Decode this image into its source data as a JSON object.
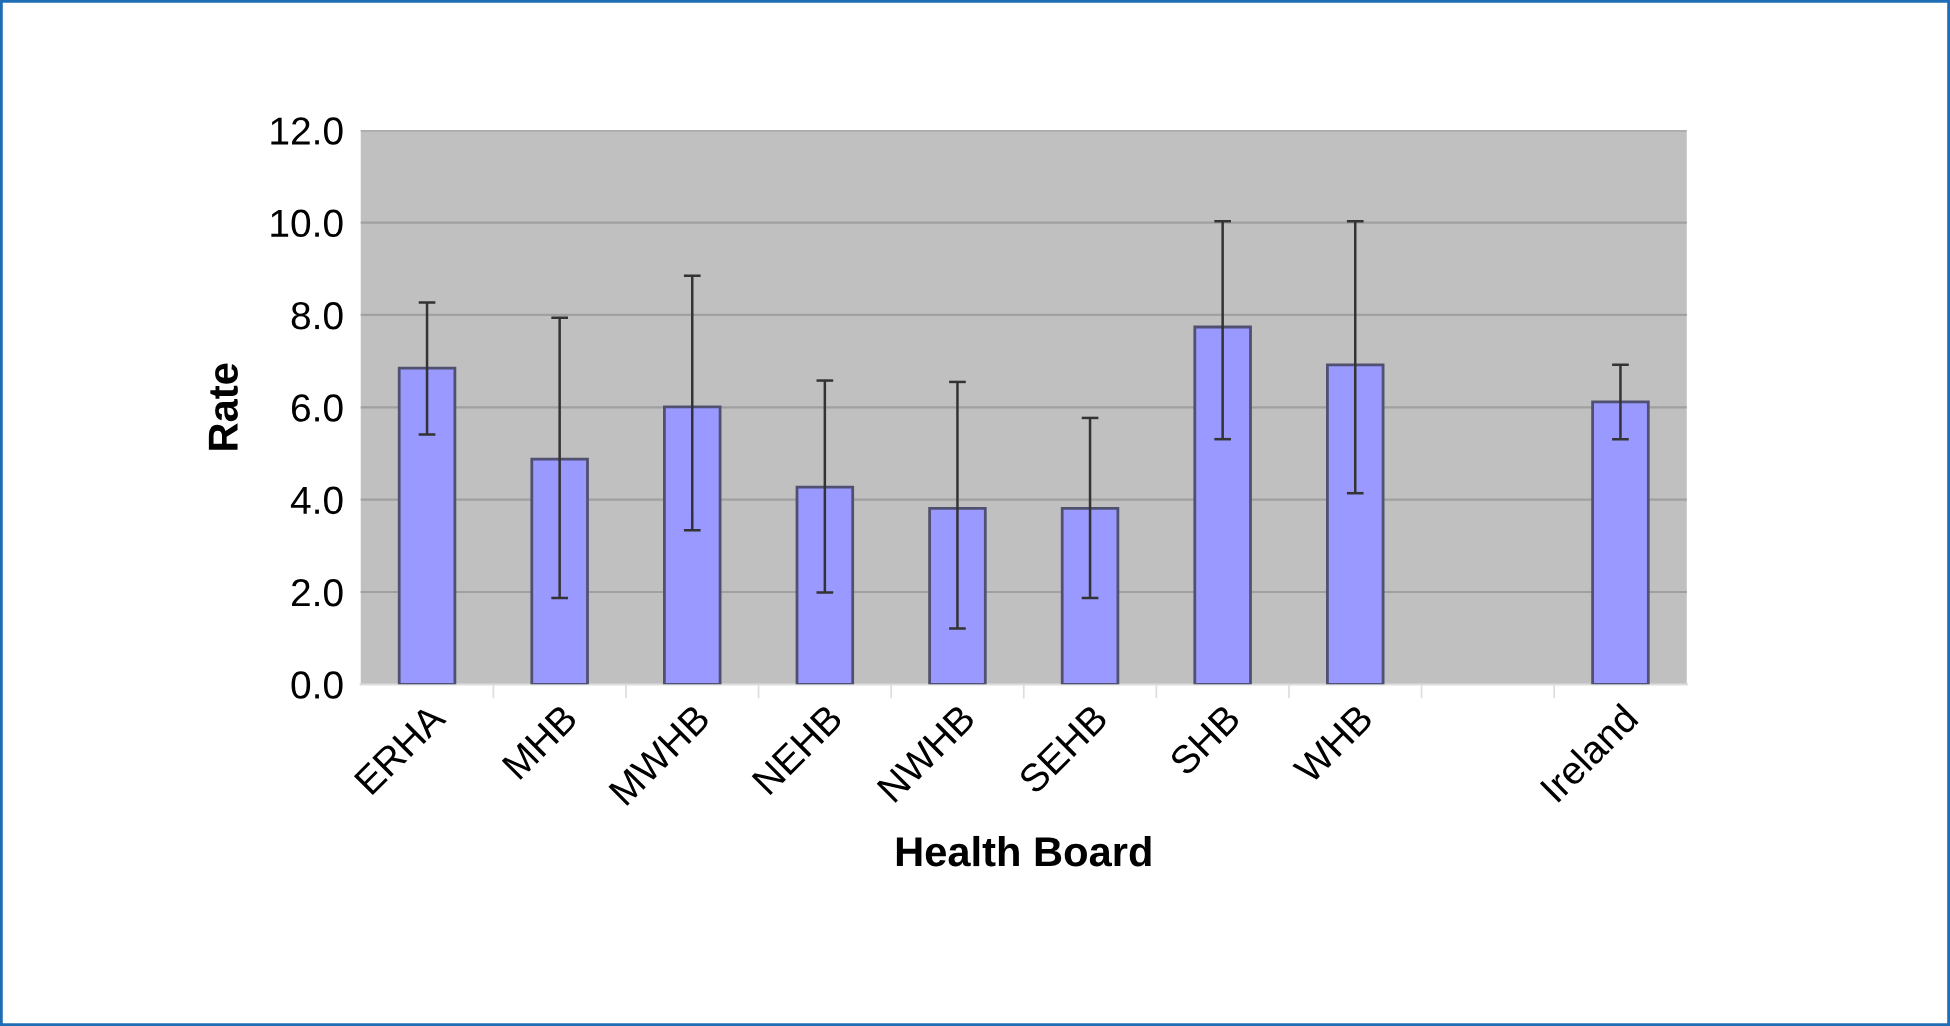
{
  "chart_data": {
    "type": "bar",
    "xlabel": "Health Board",
    "ylabel": "Rate",
    "categories": [
      "ERHA",
      "MHB",
      "MWHB",
      "NEHB",
      "NWHB",
      "SEHB",
      "SHB",
      "WHB",
      null,
      "Ireland"
    ],
    "values": [
      6.85,
      4.88,
      6.01,
      4.27,
      3.81,
      3.81,
      7.74,
      6.92,
      null,
      6.12
    ],
    "errors": [
      [
        5.41,
        8.27
      ],
      [
        1.87,
        7.94
      ],
      [
        3.34,
        8.85
      ],
      [
        1.99,
        6.58
      ],
      [
        1.21,
        6.55
      ],
      [
        1.87,
        5.77
      ],
      [
        5.31,
        10.03
      ],
      [
        4.14,
        10.03
      ],
      null,
      [
        5.31,
        6.92
      ]
    ],
    "color": "#9999ff",
    "ylim": [
      0,
      12
    ],
    "yticks": [
      {
        "value": 0,
        "label": "0.0"
      },
      {
        "value": 2,
        "label": "2.0"
      },
      {
        "value": 4,
        "label": "4.0"
      },
      {
        "value": 6,
        "label": "6.0"
      },
      {
        "value": 8,
        "label": "8.0"
      },
      {
        "value": 10,
        "label": "10.0"
      },
      {
        "value": 12,
        "label": "12.0"
      }
    ],
    "grid": "y",
    "legend": false
  }
}
